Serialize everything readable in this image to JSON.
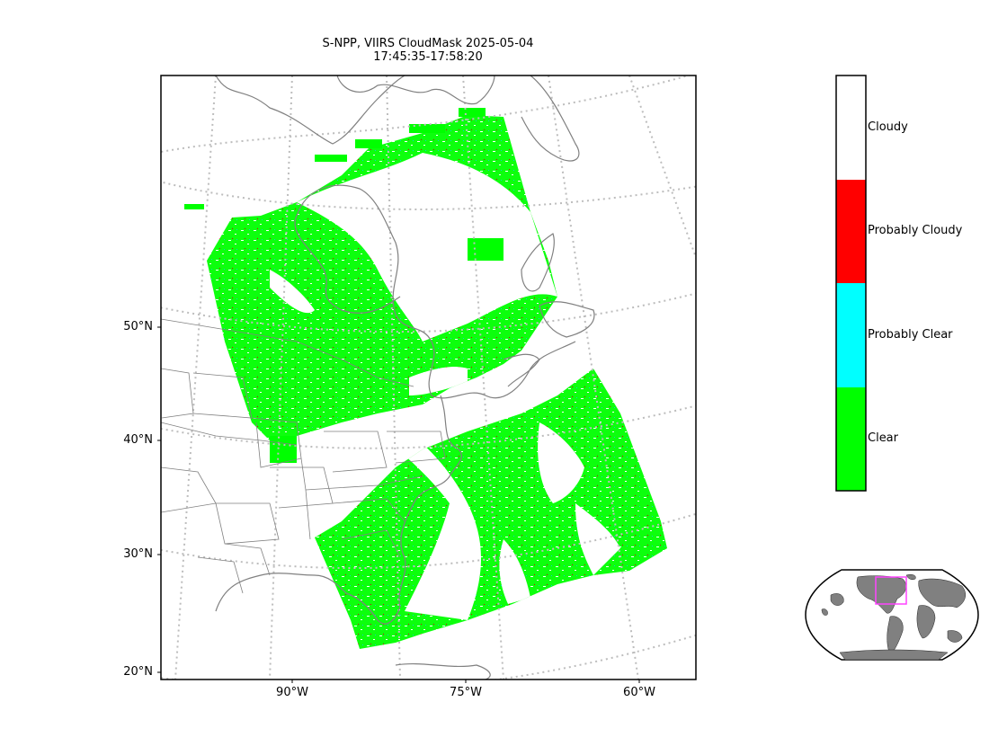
{
  "title": {
    "line1": "S-NPP, VIIRS CloudMask 2025-05-04",
    "line2": "17:45:35-17:58:20"
  },
  "map": {
    "lat_labels": [
      "50°N",
      "40°N",
      "30°N",
      "20°N"
    ],
    "lon_labels": [
      "90°W",
      "75°W",
      "60°W"
    ],
    "graticule_color": "#bdbdbd",
    "coastline_color": "#808080"
  },
  "colorbar": {
    "categories": [
      {
        "label": "Cloudy",
        "color": "#ffffff"
      },
      {
        "label": "Probably Cloudy",
        "color": "#ff0000"
      },
      {
        "label": "Probably Clear",
        "color": "#00ffff"
      },
      {
        "label": "Clear",
        "color": "#00ff00"
      }
    ]
  },
  "inset": {
    "land_color": "#808080",
    "box_color": "#ff44ff"
  }
}
